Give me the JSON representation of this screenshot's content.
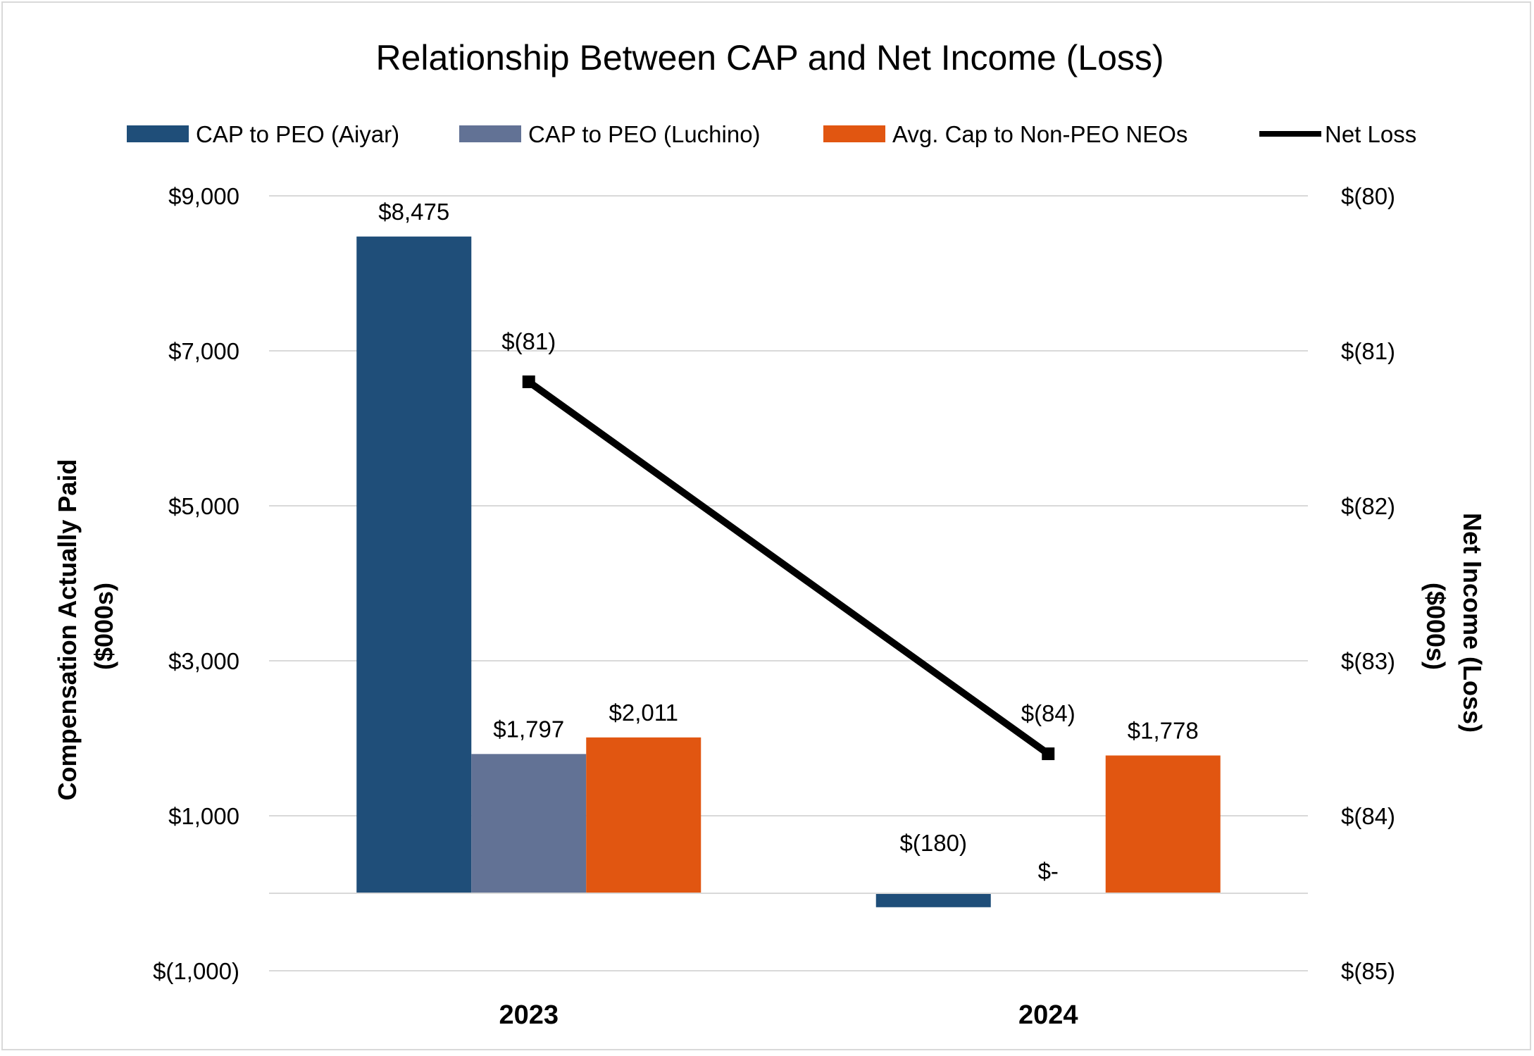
{
  "chart_data": {
    "type": "bar",
    "title": "Relationship Between CAP and Net Income (Loss)",
    "categories": [
      "2023",
      "2024"
    ],
    "ylabel": "Compensation Actually Paid ($000s)",
    "ylabel_lines": [
      "Compensation Actually Paid",
      "($000s)"
    ],
    "y2label": "Net Income (Loss) ($000s)",
    "y2label_lines": [
      "Net Income (Loss)",
      "($000s)"
    ],
    "ylim": [
      -1000,
      9000
    ],
    "y2lim": [
      -85,
      -80
    ],
    "yticks": [
      -1000,
      1000,
      3000,
      5000,
      7000,
      9000
    ],
    "ytick_labels": [
      "$(1,000)",
      "$1,000",
      "$3,000",
      "$5,000",
      "$7,000",
      "$9,000"
    ],
    "y2ticks": [
      -85,
      -84,
      -83,
      -82,
      -81,
      -80
    ],
    "y2tick_labels": [
      "$(85)",
      "$(84)",
      "$(83)",
      "$(82)",
      "$(81)",
      "$(80)"
    ],
    "grid": true,
    "legend_position": "top",
    "series": [
      {
        "name": "CAP to PEO (Aiyar)",
        "kind": "bar",
        "color": "#1f4e79",
        "values": [
          8475,
          -180
        ],
        "labels": [
          "$8,475",
          "$(180)"
        ]
      },
      {
        "name": "CAP to PEO (Luchino)",
        "kind": "bar",
        "color": "#627295",
        "values": [
          1797,
          0
        ],
        "labels": [
          "$1,797",
          "$-"
        ]
      },
      {
        "name": "Avg. Cap to Non-PEO NEOs",
        "kind": "bar",
        "color": "#e15611",
        "values": [
          2011,
          1778
        ],
        "labels": [
          "$2,011",
          "$1,778"
        ]
      },
      {
        "name": "Net Loss",
        "kind": "line",
        "axis": "secondary",
        "color": "#000000",
        "values": [
          -81.2,
          -83.6
        ],
        "labels": [
          "$(81)",
          "$(84)"
        ]
      }
    ]
  }
}
